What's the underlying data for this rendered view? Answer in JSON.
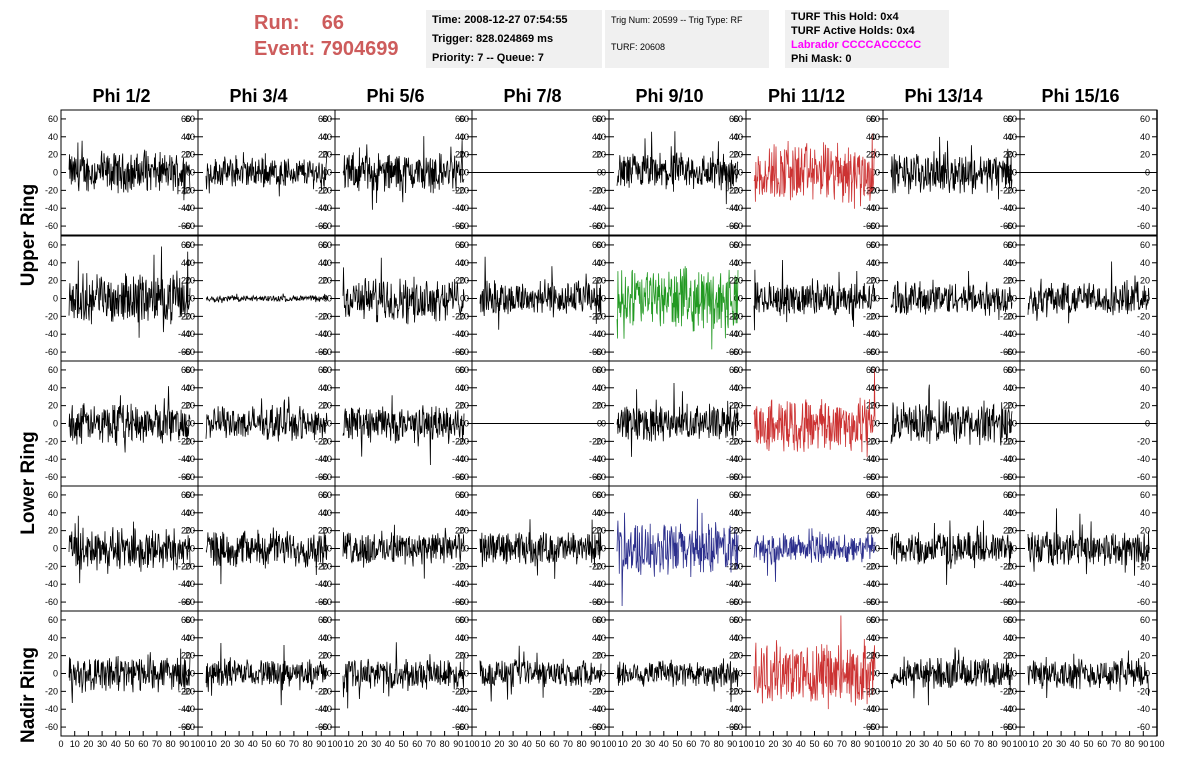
{
  "run": {
    "run_label": "Run:",
    "run_value": "66",
    "event_label": "Event:",
    "event_value": "7904699"
  },
  "info": {
    "time": "Time: 2008-12-27 07:54:55",
    "trigger": "Trigger: 828.024869 ms",
    "priority": "Priority: 7 -- Queue: 7",
    "trig_num": "Trig Num: 20599 -- Trig Type: RF",
    "turf": "TURF: 20608",
    "turf_hold": "TURF This Hold: 0x4",
    "turf_active": "TURF Active Holds: 0x4",
    "labrador": "Labrador CCCCACCCCC",
    "phi_mask": "Phi Mask: 0"
  },
  "colors": {
    "black": "#000000",
    "red": "#cc3333",
    "green": "#229922",
    "blue": "#2b2e8c",
    "labrador": "#ff00ff",
    "run": "#cd5c5c"
  },
  "chart_data": {
    "type": "line",
    "columns": [
      "Phi 1/2",
      "Phi 3/4",
      "Phi 5/6",
      "Phi 7/8",
      "Phi 9/10",
      "Phi 11/12",
      "Phi 13/14",
      "Phi 15/16"
    ],
    "rows": [
      "Upper Ring",
      "Lower Ring",
      "Nadir Ring"
    ],
    "y_ticks": [
      "60",
      "40",
      "20",
      "0",
      "-20",
      "-40",
      "-60"
    ],
    "ylim": [
      -70,
      70
    ],
    "xlim": [
      0,
      100
    ],
    "x_ticks_first": [
      "0",
      "10",
      "20",
      "30",
      "40",
      "50",
      "60",
      "70",
      "80",
      "90",
      "100"
    ],
    "x_ticks_other": [
      "10",
      "20",
      "30",
      "40",
      "50",
      "60",
      "70",
      "80",
      "90",
      "100"
    ],
    "panels": [
      [
        {
          "amp": 13,
          "color": "black"
        },
        {
          "amp": 10,
          "color": "black"
        },
        {
          "amp": 13,
          "color": "black"
        },
        {
          "amp": 0,
          "color": "black"
        },
        {
          "amp": 13,
          "color": "black"
        },
        {
          "amp": 20,
          "color": "red"
        },
        {
          "amp": 13,
          "color": "black"
        },
        {
          "amp": 0,
          "color": "black"
        }
      ],
      [
        {
          "amp": 16,
          "color": "black"
        },
        {
          "amp": 2,
          "color": "black"
        },
        {
          "amp": 14,
          "color": "black"
        },
        {
          "amp": 12,
          "color": "black"
        },
        {
          "amp": 20,
          "color": "green"
        },
        {
          "amp": 11,
          "color": "black"
        },
        {
          "amp": 11,
          "color": "black"
        },
        {
          "amp": 11,
          "color": "black"
        }
      ],
      [
        {
          "amp": 13,
          "color": "black"
        },
        {
          "amp": 11,
          "color": "black"
        },
        {
          "amp": 12,
          "color": "black"
        },
        {
          "amp": 0,
          "color": "black"
        },
        {
          "amp": 12,
          "color": "black"
        },
        {
          "amp": 18,
          "color": "red"
        },
        {
          "amp": 14,
          "color": "black"
        },
        {
          "amp": 0,
          "color": "black"
        }
      ],
      [
        {
          "amp": 14,
          "color": "black"
        },
        {
          "amp": 12,
          "color": "black"
        },
        {
          "amp": 11,
          "color": "black"
        },
        {
          "amp": 11,
          "color": "black"
        },
        {
          "amp": 17,
          "color": "blue"
        },
        {
          "amp": 10,
          "color": "blue"
        },
        {
          "amp": 11,
          "color": "black"
        },
        {
          "amp": 12,
          "color": "black"
        }
      ],
      [
        {
          "amp": 12,
          "color": "black"
        },
        {
          "amp": 9,
          "color": "black"
        },
        {
          "amp": 10,
          "color": "black"
        },
        {
          "amp": 9,
          "color": "black"
        },
        {
          "amp": 9,
          "color": "black"
        },
        {
          "amp": 20,
          "color": "red"
        },
        {
          "amp": 10,
          "color": "black"
        },
        {
          "amp": 10,
          "color": "black"
        }
      ]
    ]
  }
}
